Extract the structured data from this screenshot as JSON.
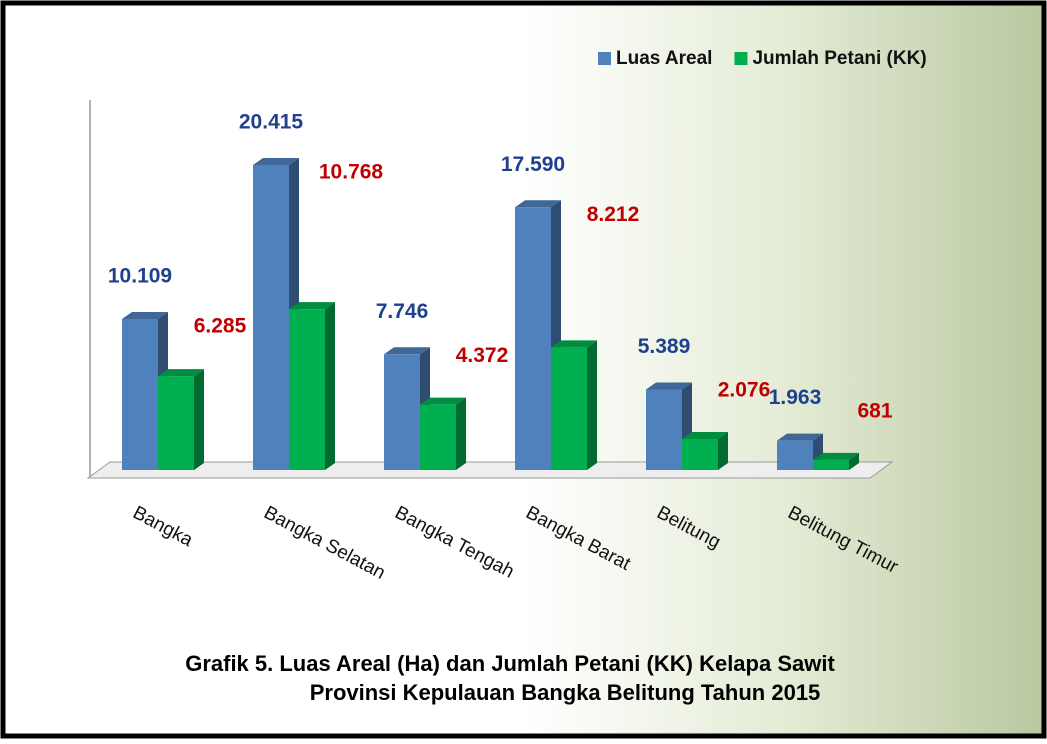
{
  "chart_data": {
    "type": "bar3d",
    "title": [
      "Grafik 5.  Luas Areal (Ha) dan Jumlah Petani (KK) Kelapa Sawit",
      "Provinsi Kepulauan Bangka Belitung Tahun 2015"
    ],
    "categories": [
      "Bangka",
      "Bangka Selatan",
      "Bangka Tengah",
      "Bangka Barat",
      "Belitung",
      "Belitung Timur"
    ],
    "series": [
      {
        "name": "Luas Areal",
        "color": "#4f81bd",
        "label_color": "#1f3f8f",
        "values": [
          10109,
          20415,
          7746,
          17590,
          5389,
          1963
        ],
        "value_labels": [
          "10.109",
          "20.415",
          "7.746",
          "17.590",
          "5.389",
          "1.963"
        ]
      },
      {
        "name": "Jumlah Petani (KK)",
        "color": "#00b050",
        "label_color": "#c00000",
        "values": [
          6285,
          10768,
          4372,
          8212,
          2076,
          681
        ],
        "value_labels": [
          "6.285",
          "10.768",
          "4.372",
          "8.212",
          "2.076",
          "681"
        ]
      }
    ],
    "legend": "top-right"
  }
}
